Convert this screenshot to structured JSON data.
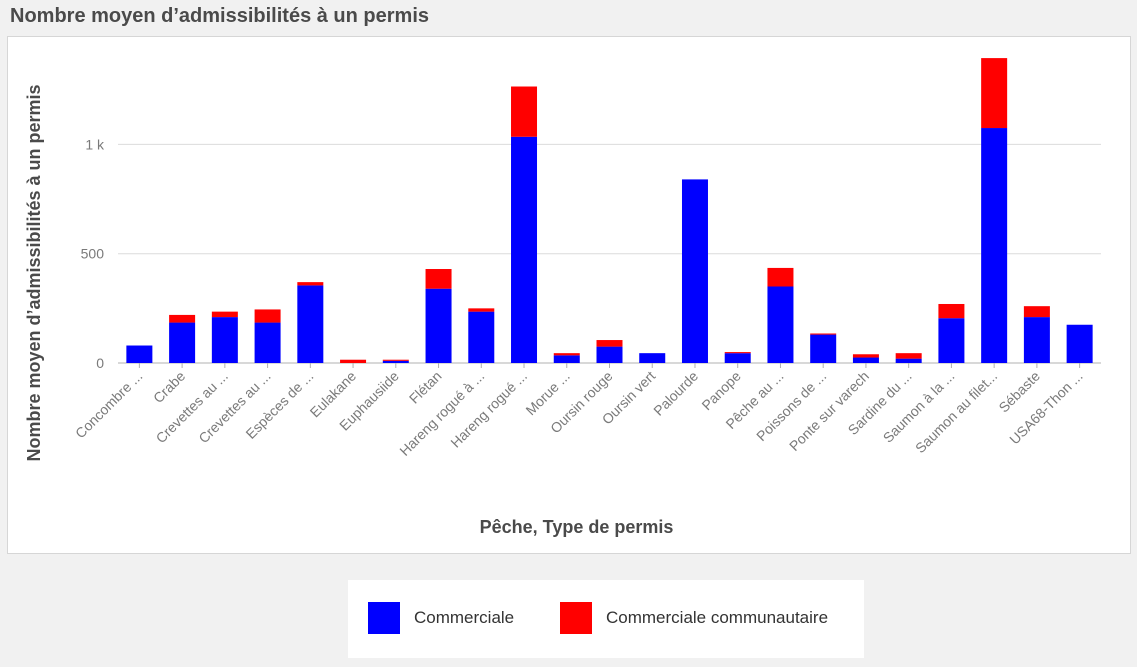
{
  "page_title": "Nombre moyen d’admissibilités à un permis",
  "chart_data": {
    "type": "bar",
    "stacked": true,
    "title": "Nombre moyen d’admissibilités à un permis",
    "xlabel": "Pêche, Type de permis",
    "ylabel": "Nombre moyen d’admissibilités à un permis",
    "ylim": [
      0,
      1400
    ],
    "yticks": [
      0,
      500,
      1000
    ],
    "ytick_labels": [
      "0",
      "500",
      "1 k"
    ],
    "grid": true,
    "categories": [
      "Concombre ...",
      "Crabe",
      "Crevettes au ...",
      "Crevettes au ...",
      "Espèces de ...",
      "Eulakane",
      "Euphausiide",
      "Flétan",
      "Hareng rogué à ...",
      "Hareng rogué ...",
      "Morue ...",
      "Oursin rouge",
      "Oursin vert",
      "Palourde",
      "Panope",
      "Pêche au ...",
      "Poissons de ...",
      "Ponte sur varech",
      "Sardine du ...",
      "Saumon à la ...",
      "Saumon au filet...",
      "Sébaste",
      "USA68-Thon ..."
    ],
    "series": [
      {
        "name": "Commerciale",
        "color": "#0000ff",
        "values": [
          80,
          185,
          210,
          185,
          355,
          0,
          10,
          340,
          235,
          1035,
          35,
          75,
          45,
          840,
          45,
          350,
          130,
          25,
          20,
          205,
          1075,
          210,
          175
        ]
      },
      {
        "name": "Commerciale communautaire",
        "color": "#ff0000",
        "values": [
          0,
          35,
          25,
          60,
          15,
          15,
          5,
          90,
          15,
          230,
          10,
          30,
          0,
          0,
          5,
          85,
          5,
          15,
          25,
          65,
          320,
          50,
          0
        ]
      }
    ]
  },
  "legend": {
    "items": [
      {
        "label": "Commerciale",
        "color": "#0000ff"
      },
      {
        "label": "Commerciale communautaire",
        "color": "#ff0000"
      }
    ]
  }
}
